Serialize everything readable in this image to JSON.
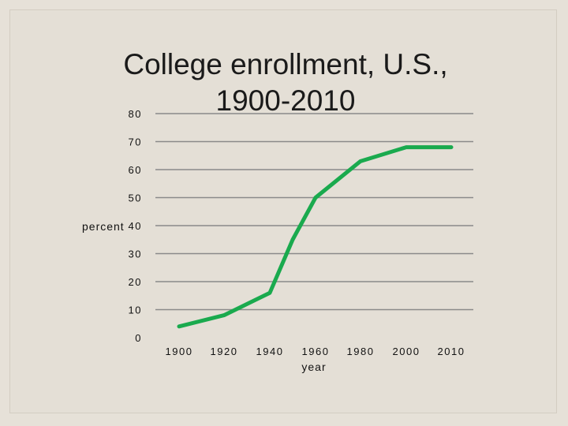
{
  "chart_data": {
    "type": "line",
    "title_line1": "College enrollment, U.S.,",
    "title_line2": "1900-2010",
    "xlabel": "year",
    "ylabel": "percent",
    "categories": [
      "1900",
      "1920",
      "1940",
      "1960",
      "1980",
      "2000",
      "2010"
    ],
    "x_points": [
      1900,
      1920,
      1940,
      1950,
      1960,
      1980,
      2000,
      2010
    ],
    "y_points": [
      4,
      8,
      16,
      35,
      50,
      63,
      68,
      68
    ],
    "y_ticks": [
      "0",
      "10",
      "20",
      "30",
      "40",
      "50",
      "60",
      "70",
      "80"
    ],
    "ylim": [
      0,
      80
    ],
    "grid": true,
    "line_color": "#1aaa4e"
  }
}
